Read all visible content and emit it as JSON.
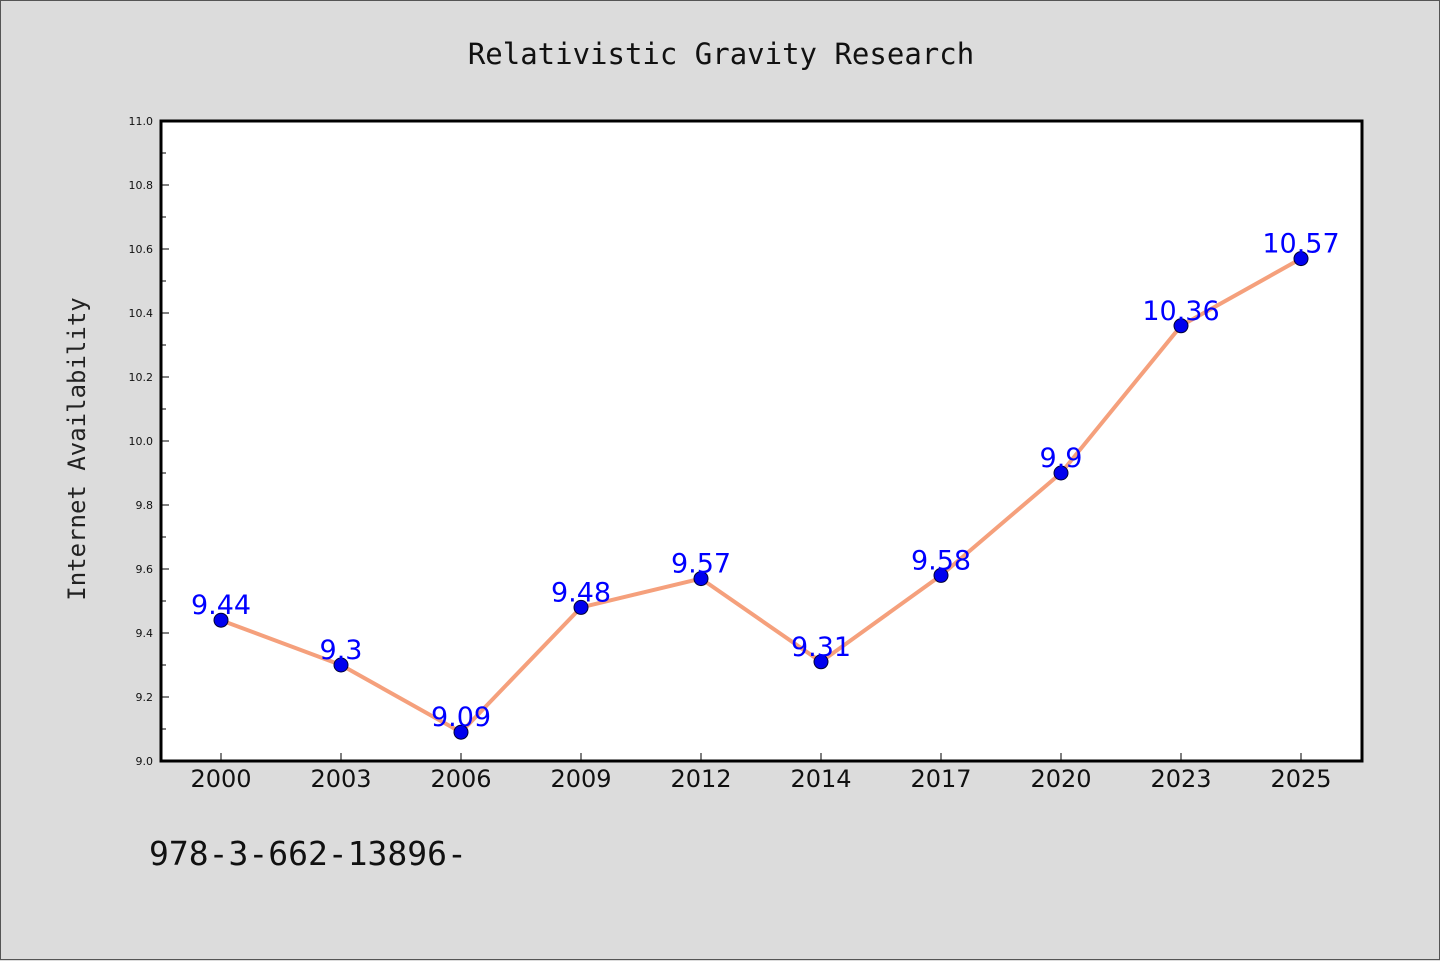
{
  "chart_data": {
    "type": "line",
    "title": "Relativistic Gravity Research",
    "xlabel": "",
    "ylabel": "Internet Availability",
    "categories": [
      "2000",
      "2003",
      "2006",
      "2009",
      "2012",
      "2014",
      "2017",
      "2020",
      "2023",
      "2025"
    ],
    "series": [
      {
        "values": [
          9.44,
          9.3,
          9.09,
          9.48,
          9.57,
          9.31,
          9.58,
          9.9,
          10.36,
          10.57
        ],
        "labels": [
          "9.44",
          "9.3",
          "9.09",
          "9.48",
          "9.57",
          "9.31",
          "9.58",
          "9.9",
          "10.36",
          "10.57"
        ],
        "line_color": "#f5a07c",
        "marker_color": "#0000ee",
        "label_color": "#0000ff"
      }
    ],
    "ylim": [
      9.0,
      11.0
    ],
    "yticks": [
      "9.0",
      "9.2",
      "9.4",
      "9.6",
      "9.8",
      "10.0",
      "10.2",
      "10.4",
      "10.6",
      "10.8",
      "11.0"
    ],
    "grid": false,
    "legend": "none"
  },
  "footnote": "978-3-662-13896-",
  "colors": {
    "background": "#dcdcdc",
    "plot_background": "#ffffff",
    "axis": "#000000"
  }
}
